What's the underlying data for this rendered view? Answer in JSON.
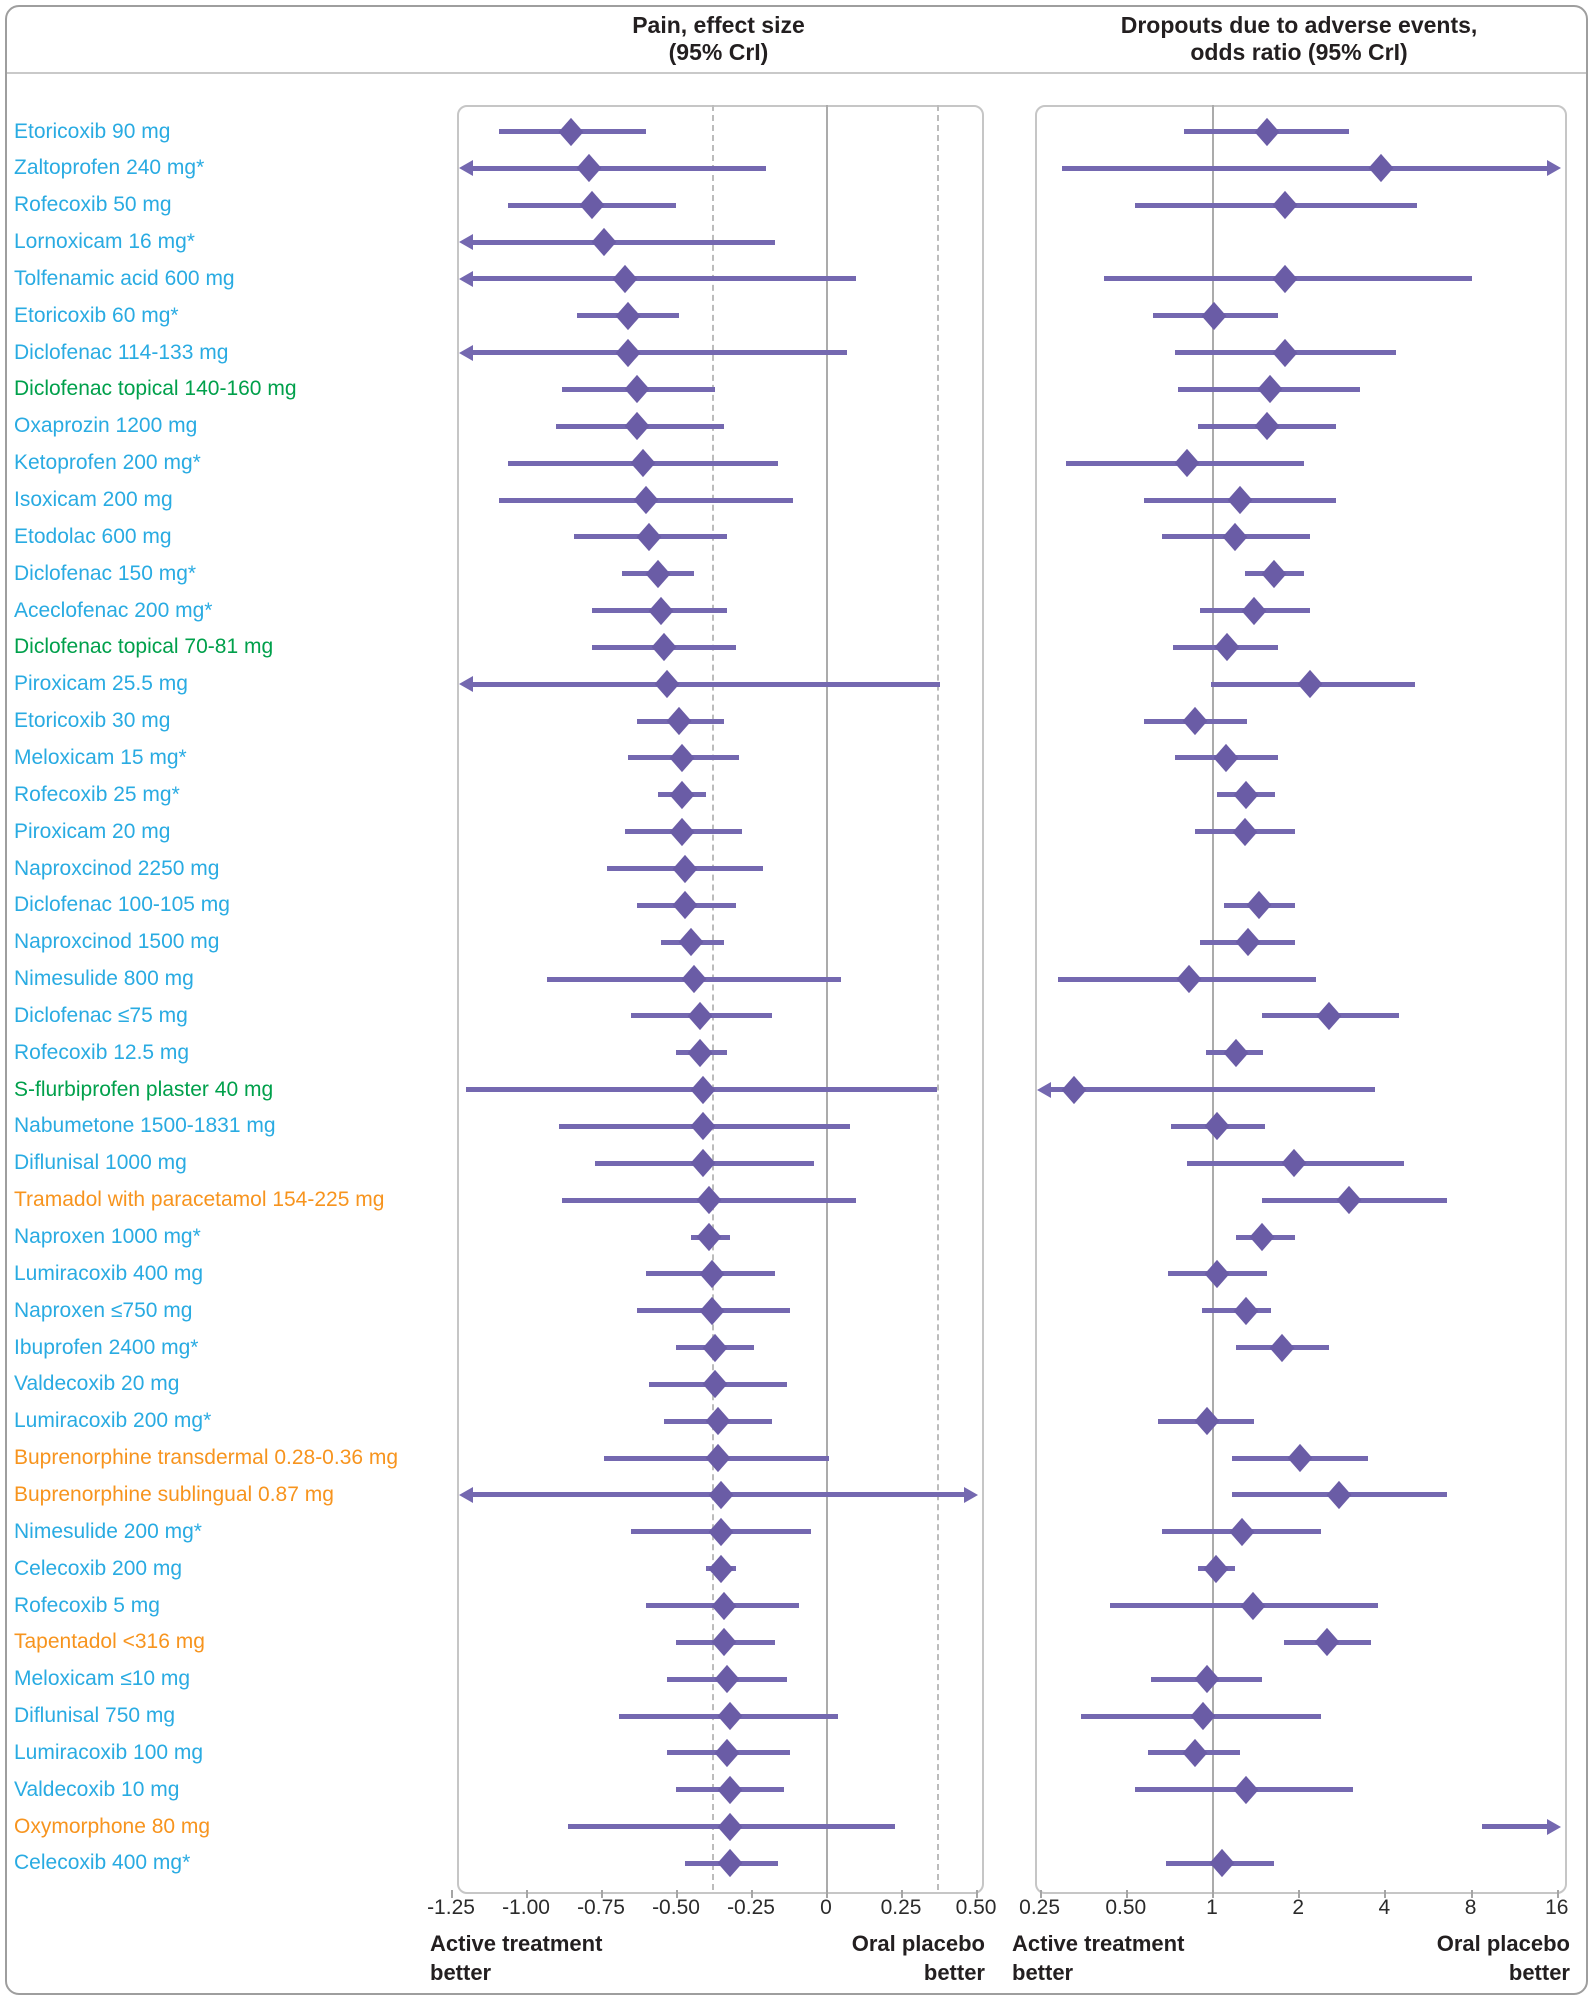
{
  "colors": {
    "nsaid_oral_label": "#29abe2",
    "topical_label": "#00a04b",
    "opioid_label": "#f7941e",
    "estimate_purple": "#6a5ca6",
    "ci_line_purple": "#7468b0",
    "axis_gray": "#ababab"
  },
  "headers": {
    "left_line1": "Pain, effect size",
    "left_line2": "(95% CrI)",
    "right_line1": "Dropouts due to adverse events,",
    "right_line2": "odds ratio (95% CrI)"
  },
  "footer": {
    "left_panel_left": "Active treatment\nbetter",
    "left_panel_right": "Oral placebo\nbetter",
    "right_panel_left": "Active treatment\nbetter",
    "right_panel_right": "Oral placebo\nbetter"
  },
  "chart_data": {
    "type": "forest",
    "panels": [
      {
        "id": "pain",
        "title": "Pain, effect size (95% CrI)",
        "scale": "linear",
        "xlim": [
          -1.25,
          0.5
        ],
        "ticks": [
          "-1.25",
          "-1.00",
          "-0.75",
          "-0.50",
          "-0.25",
          "0",
          "0.25",
          "0.50"
        ],
        "tick_values": [
          -1.25,
          -1.0,
          -0.75,
          -0.5,
          -0.25,
          0,
          0.25,
          0.5
        ],
        "zero_line": 0,
        "dashed_refs": [
          -0.38,
          0.37
        ],
        "left_note": "Active treatment better",
        "right_note": "Oral placebo better"
      },
      {
        "id": "dropouts",
        "title": "Dropouts due to adverse events, odds ratio (95% CrI)",
        "scale": "log2",
        "xlim": [
          0.25,
          16
        ],
        "ticks": [
          "0.25",
          "0.50",
          "1",
          "2",
          "4",
          "8",
          "16"
        ],
        "tick_values": [
          0.25,
          0.5,
          1,
          2,
          4,
          8,
          16
        ],
        "zero_line": 1,
        "dashed_refs": [],
        "left_note": "Active treatment better",
        "right_note": "Oral placebo better"
      }
    ],
    "treatments": [
      {
        "label": "Etoricoxib 90 mg",
        "group": "nsaid",
        "pain": {
          "es": -0.85,
          "lo": -1.09,
          "hi": -0.6
        },
        "dropouts": {
          "or": 1.56,
          "lo": 0.8,
          "hi": 3.0
        }
      },
      {
        "label": "Zaltoprofen 240 mg*",
        "group": "nsaid",
        "pain": {
          "es": -0.79,
          "lo": -1.24,
          "hi": -0.2,
          "lo_arrow": true
        },
        "dropouts": {
          "or": 3.9,
          "lo": 0.3,
          "hi": 15.8,
          "hi_arrow": true
        }
      },
      {
        "label": "Rofecoxib 50 mg",
        "group": "nsaid",
        "pain": {
          "es": -0.78,
          "lo": -1.06,
          "hi": -0.5
        },
        "dropouts": {
          "or": 1.8,
          "lo": 0.54,
          "hi": 5.2
        }
      },
      {
        "label": "Lornoxicam 16 mg*",
        "group": "nsaid",
        "pain": {
          "es": -0.74,
          "lo": -1.24,
          "hi": -0.17,
          "lo_arrow": true
        },
        "dropouts": null
      },
      {
        "label": "Tolfenamic acid 600 mg",
        "group": "nsaid",
        "pain": {
          "es": -0.67,
          "lo": -1.24,
          "hi": 0.1,
          "lo_arrow": true
        },
        "dropouts": {
          "or": 1.8,
          "lo": 0.42,
          "hi": 8.1
        }
      },
      {
        "label": "Etoricoxib 60 mg*",
        "group": "nsaid",
        "pain": {
          "es": -0.66,
          "lo": -0.83,
          "hi": -0.49
        },
        "dropouts": {
          "or": 1.02,
          "lo": 0.62,
          "hi": 1.7
        }
      },
      {
        "label": "Diclofenac 114-133 mg",
        "group": "nsaid",
        "pain": {
          "es": -0.66,
          "lo": -1.24,
          "hi": 0.07,
          "lo_arrow": true
        },
        "dropouts": {
          "or": 1.8,
          "lo": 0.74,
          "hi": 4.4
        }
      },
      {
        "label": "Diclofenac topical 140-160 mg",
        "group": "topical",
        "pain": {
          "es": -0.63,
          "lo": -0.88,
          "hi": -0.37
        },
        "dropouts": {
          "or": 1.6,
          "lo": 0.76,
          "hi": 3.3
        }
      },
      {
        "label": "Oxaprozin 1200 mg",
        "group": "nsaid",
        "pain": {
          "es": -0.63,
          "lo": -0.9,
          "hi": -0.34
        },
        "dropouts": {
          "or": 1.55,
          "lo": 0.89,
          "hi": 2.7
        }
      },
      {
        "label": "Ketoprofen 200 mg*",
        "group": "nsaid",
        "pain": {
          "es": -0.61,
          "lo": -1.06,
          "hi": -0.16
        },
        "dropouts": {
          "or": 0.82,
          "lo": 0.31,
          "hi": 2.1
        }
      },
      {
        "label": "Isoxicam 200 mg",
        "group": "nsaid",
        "pain": {
          "es": -0.6,
          "lo": -1.09,
          "hi": -0.11
        },
        "dropouts": {
          "or": 1.25,
          "lo": 0.58,
          "hi": 2.7
        }
      },
      {
        "label": "Etodolac 600 mg",
        "group": "nsaid",
        "pain": {
          "es": -0.59,
          "lo": -0.84,
          "hi": -0.33
        },
        "dropouts": {
          "or": 1.2,
          "lo": 0.67,
          "hi": 2.2
        }
      },
      {
        "label": "Diclofenac 150 mg*",
        "group": "nsaid",
        "pain": {
          "es": -0.56,
          "lo": -0.68,
          "hi": -0.44
        },
        "dropouts": {
          "or": 1.64,
          "lo": 1.3,
          "hi": 2.1
        }
      },
      {
        "label": "Aceclofenac 200 mg*",
        "group": "nsaid",
        "pain": {
          "es": -0.55,
          "lo": -0.78,
          "hi": -0.33
        },
        "dropouts": {
          "or": 1.4,
          "lo": 0.91,
          "hi": 2.2
        }
      },
      {
        "label": "Diclofenac topical 70-81 mg",
        "group": "topical",
        "pain": {
          "es": -0.54,
          "lo": -0.78,
          "hi": -0.3
        },
        "dropouts": {
          "or": 1.13,
          "lo": 0.73,
          "hi": 1.7
        }
      },
      {
        "label": "Piroxicam 25.5 mg",
        "group": "nsaid",
        "pain": {
          "es": -0.53,
          "lo": -1.24,
          "hi": 0.38,
          "lo_arrow": true
        },
        "dropouts": {
          "or": 2.2,
          "lo": 0.99,
          "hi": 5.1
        }
      },
      {
        "label": "Etoricoxib 30 mg",
        "group": "nsaid",
        "pain": {
          "es": -0.49,
          "lo": -0.63,
          "hi": -0.34
        },
        "dropouts": {
          "or": 0.87,
          "lo": 0.58,
          "hi": 1.33
        }
      },
      {
        "label": "Meloxicam 15 mg*",
        "group": "nsaid",
        "pain": {
          "es": -0.48,
          "lo": -0.66,
          "hi": -0.29
        },
        "dropouts": {
          "or": 1.12,
          "lo": 0.74,
          "hi": 1.7
        }
      },
      {
        "label": "Rofecoxib 25 mg*",
        "group": "nsaid",
        "pain": {
          "es": -0.48,
          "lo": -0.56,
          "hi": -0.4
        },
        "dropouts": {
          "or": 1.31,
          "lo": 1.04,
          "hi": 1.66
        }
      },
      {
        "label": "Piroxicam 20 mg",
        "group": "nsaid",
        "pain": {
          "es": -0.48,
          "lo": -0.67,
          "hi": -0.28
        },
        "dropouts": {
          "or": 1.3,
          "lo": 0.87,
          "hi": 1.95
        }
      },
      {
        "label": "Naproxcinod 2250 mg",
        "group": "nsaid",
        "pain": {
          "es": -0.47,
          "lo": -0.73,
          "hi": -0.21
        },
        "dropouts": null
      },
      {
        "label": "Diclofenac 100-105 mg",
        "group": "nsaid",
        "pain": {
          "es": -0.47,
          "lo": -0.63,
          "hi": -0.3
        },
        "dropouts": {
          "or": 1.46,
          "lo": 1.1,
          "hi": 1.95
        }
      },
      {
        "label": "Naproxcinod 1500 mg",
        "group": "nsaid",
        "pain": {
          "es": -0.45,
          "lo": -0.55,
          "hi": -0.34
        },
        "dropouts": {
          "or": 1.34,
          "lo": 0.91,
          "hi": 1.95
        }
      },
      {
        "label": "Nimesulide 800 mg",
        "group": "nsaid",
        "pain": {
          "es": -0.44,
          "lo": -0.93,
          "hi": 0.05
        },
        "dropouts": {
          "or": 0.83,
          "lo": 0.29,
          "hi": 2.3
        }
      },
      {
        "label": "Diclofenac ≤75 mg",
        "group": "nsaid",
        "pain": {
          "es": -0.42,
          "lo": -0.65,
          "hi": -0.18
        },
        "dropouts": {
          "or": 2.56,
          "lo": 1.5,
          "hi": 4.5
        }
      },
      {
        "label": "Rofecoxib 12.5 mg",
        "group": "nsaid",
        "pain": {
          "es": -0.42,
          "lo": -0.5,
          "hi": -0.33
        },
        "dropouts": {
          "or": 1.21,
          "lo": 0.95,
          "hi": 1.51
        }
      },
      {
        "label": "S-flurbiprofen plaster 40 mg",
        "group": "topical",
        "pain": {
          "es": -0.41,
          "lo": -1.2,
          "hi": 0.37
        },
        "dropouts": {
          "or": 0.33,
          "lo": 0.26,
          "hi": 3.7,
          "lo_arrow": true
        }
      },
      {
        "label": "Nabumetone 1500-1831 mg",
        "group": "nsaid",
        "pain": {
          "es": -0.41,
          "lo": -0.89,
          "hi": 0.08
        },
        "dropouts": {
          "or": 1.04,
          "lo": 0.72,
          "hi": 1.53
        }
      },
      {
        "label": "Diflunisal 1000 mg",
        "group": "nsaid",
        "pain": {
          "es": -0.41,
          "lo": -0.77,
          "hi": -0.04
        },
        "dropouts": {
          "or": 1.93,
          "lo": 0.82,
          "hi": 4.7
        }
      },
      {
        "label": "Tramadol with paracetamol 154-225 mg",
        "group": "opioid",
        "pain": {
          "es": -0.39,
          "lo": -0.88,
          "hi": 0.1
        },
        "dropouts": {
          "or": 3.0,
          "lo": 1.5,
          "hi": 6.6
        }
      },
      {
        "label": "Naproxen 1000 mg*",
        "group": "nsaid",
        "pain": {
          "es": -0.39,
          "lo": -0.45,
          "hi": -0.32
        },
        "dropouts": {
          "or": 1.49,
          "lo": 1.21,
          "hi": 1.95
        }
      },
      {
        "label": "Lumiracoxib 400 mg",
        "group": "nsaid",
        "pain": {
          "es": -0.38,
          "lo": -0.6,
          "hi": -0.17
        },
        "dropouts": {
          "or": 1.04,
          "lo": 0.7,
          "hi": 1.56
        }
      },
      {
        "label": "Naproxen ≤750 mg",
        "group": "nsaid",
        "pain": {
          "es": -0.38,
          "lo": -0.63,
          "hi": -0.12
        },
        "dropouts": {
          "or": 1.31,
          "lo": 0.92,
          "hi": 1.61
        }
      },
      {
        "label": "Ibuprofen 2400 mg*",
        "group": "nsaid",
        "pain": {
          "es": -0.37,
          "lo": -0.5,
          "hi": -0.24
        },
        "dropouts": {
          "or": 1.75,
          "lo": 1.21,
          "hi": 2.57
        }
      },
      {
        "label": "Valdecoxib 20 mg",
        "group": "nsaid",
        "pain": {
          "es": -0.37,
          "lo": -0.59,
          "hi": -0.13
        },
        "dropouts": null
      },
      {
        "label": "Lumiracoxib 200 mg*",
        "group": "nsaid",
        "pain": {
          "es": -0.36,
          "lo": -0.54,
          "hi": -0.18
        },
        "dropouts": {
          "or": 0.96,
          "lo": 0.65,
          "hi": 1.4
        }
      },
      {
        "label": "Buprenorphine transdermal 0.28-0.36 mg",
        "group": "opioid",
        "pain": {
          "es": -0.36,
          "lo": -0.74,
          "hi": 0.01
        },
        "dropouts": {
          "or": 2.03,
          "lo": 1.17,
          "hi": 3.5
        }
      },
      {
        "label": "Buprenorphine sublingual 0.87 mg",
        "group": "opioid",
        "pain": {
          "es": -0.35,
          "lo": -1.24,
          "hi": 0.45,
          "lo_arrow": true,
          "hi_arrow": true
        },
        "dropouts": {
          "or": 2.78,
          "lo": 1.17,
          "hi": 6.6
        }
      },
      {
        "label": "Nimesulide 200 mg*",
        "group": "nsaid",
        "pain": {
          "es": -0.35,
          "lo": -0.65,
          "hi": -0.05
        },
        "dropouts": {
          "or": 1.27,
          "lo": 0.67,
          "hi": 2.4
        }
      },
      {
        "label": "Celecoxib 200 mg",
        "group": "nsaid",
        "pain": {
          "es": -0.35,
          "lo": -0.4,
          "hi": -0.3
        },
        "dropouts": {
          "or": 1.03,
          "lo": 0.89,
          "hi": 1.2
        }
      },
      {
        "label": "Rofecoxib 5 mg",
        "group": "nsaid",
        "pain": {
          "es": -0.34,
          "lo": -0.6,
          "hi": -0.09
        },
        "dropouts": {
          "or": 1.39,
          "lo": 0.44,
          "hi": 3.8
        }
      },
      {
        "label": "Tapentadol <316 mg",
        "group": "opioid",
        "pain": {
          "es": -0.34,
          "lo": -0.5,
          "hi": -0.17
        },
        "dropouts": {
          "or": 2.52,
          "lo": 1.79,
          "hi": 3.6
        }
      },
      {
        "label": "Meloxicam ≤10 mg",
        "group": "nsaid",
        "pain": {
          "es": -0.33,
          "lo": -0.53,
          "hi": -0.13
        },
        "dropouts": {
          "or": 0.96,
          "lo": 0.61,
          "hi": 1.5
        }
      },
      {
        "label": "Diflunisal 750 mg",
        "group": "nsaid",
        "pain": {
          "es": -0.32,
          "lo": -0.69,
          "hi": 0.04
        },
        "dropouts": {
          "or": 0.93,
          "lo": 0.35,
          "hi": 2.4
        }
      },
      {
        "label": "Lumiracoxib 100 mg",
        "group": "nsaid",
        "pain": {
          "es": -0.33,
          "lo": -0.53,
          "hi": -0.12
        },
        "dropouts": {
          "or": 0.87,
          "lo": 0.6,
          "hi": 1.25
        }
      },
      {
        "label": "Valdecoxib 10 mg",
        "group": "nsaid",
        "pain": {
          "es": -0.32,
          "lo": -0.5,
          "hi": -0.14
        },
        "dropouts": {
          "or": 1.31,
          "lo": 0.54,
          "hi": 3.1
        }
      },
      {
        "label": "Oxymorphone 80 mg",
        "group": "opioid",
        "pain": {
          "es": -0.32,
          "lo": -0.86,
          "hi": 0.23
        },
        "dropouts": {
          "or": null,
          "lo": 8.8,
          "hi": 15.8,
          "hi_arrow": true,
          "no_diamond": true
        }
      },
      {
        "label": "Celecoxib 400 mg*",
        "group": "nsaid",
        "pain": {
          "es": -0.32,
          "lo": -0.47,
          "hi": -0.16
        },
        "dropouts": {
          "or": 1.08,
          "lo": 0.69,
          "hi": 1.65
        }
      }
    ]
  }
}
